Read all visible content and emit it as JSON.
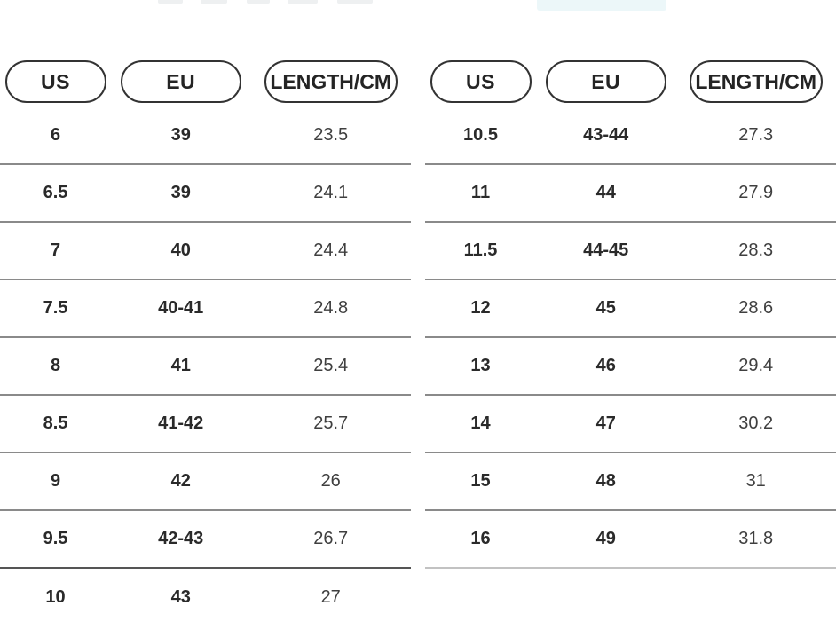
{
  "size_chart": {
    "columns": [
      "US",
      "EU",
      "LENGTH/CM"
    ],
    "left_table": {
      "rows": [
        {
          "us": "6",
          "eu": "39",
          "length_cm": "23.5"
        },
        {
          "us": "6.5",
          "eu": "39",
          "length_cm": "24.1"
        },
        {
          "us": "7",
          "eu": "40",
          "length_cm": "24.4"
        },
        {
          "us": "7.5",
          "eu": "40-41",
          "length_cm": "24.8"
        },
        {
          "us": "8",
          "eu": "41",
          "length_cm": "25.4"
        },
        {
          "us": "8.5",
          "eu": "41-42",
          "length_cm": "25.7"
        },
        {
          "us": "9",
          "eu": "42",
          "length_cm": "26"
        },
        {
          "us": "9.5",
          "eu": "42-43",
          "length_cm": "26.7"
        },
        {
          "us": "10",
          "eu": "43",
          "length_cm": "27"
        }
      ]
    },
    "right_table": {
      "rows": [
        {
          "us": "10.5",
          "eu": "43-44",
          "length_cm": "27.3"
        },
        {
          "us": "11",
          "eu": "44",
          "length_cm": "27.9"
        },
        {
          "us": "11.5",
          "eu": "44-45",
          "length_cm": "28.3"
        },
        {
          "us": "12",
          "eu": "45",
          "length_cm": "28.6"
        },
        {
          "us": "13",
          "eu": "46",
          "length_cm": "29.4"
        },
        {
          "us": "14",
          "eu": "47",
          "length_cm": "30.2"
        },
        {
          "us": "15",
          "eu": "48",
          "length_cm": "31"
        },
        {
          "us": "16",
          "eu": "49",
          "length_cm": "31.8"
        }
      ]
    }
  },
  "colors": {
    "background": "#ffffff",
    "header-text": "#242424",
    "pill-border": "#333333",
    "size-text": "#2a2a2a",
    "length-text": "#3f3f3f",
    "divider": "#8a8a8a",
    "divider-strong": "#555555",
    "divider-light": "#c2c2c2",
    "remnant-teal": "#ecf7f9",
    "remnant-gray": "#eef0f1"
  }
}
